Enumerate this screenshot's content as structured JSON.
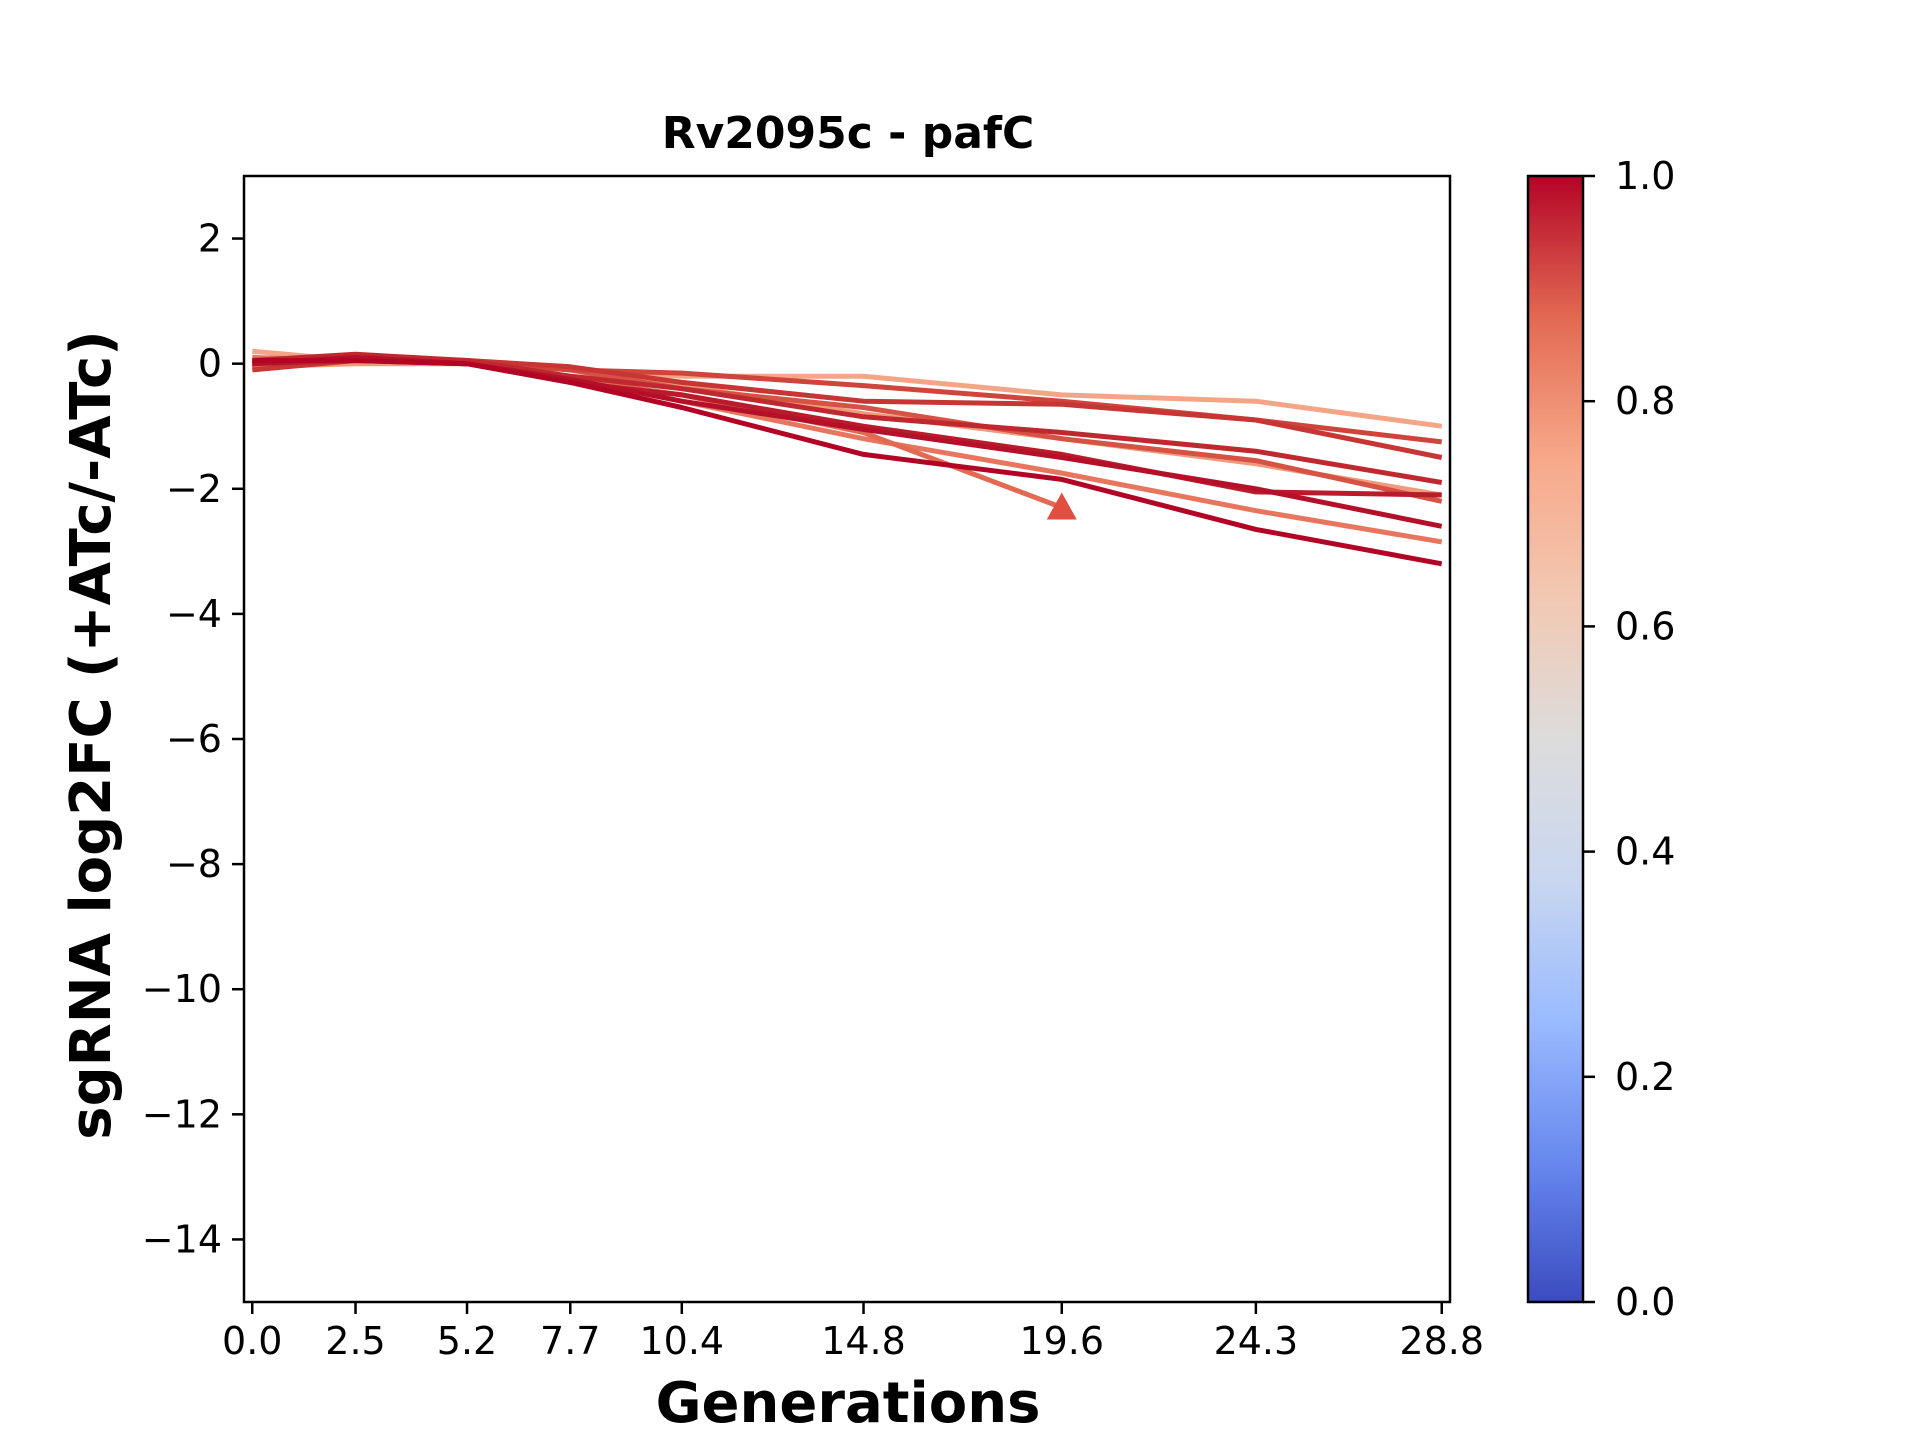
{
  "chart_data": {
    "type": "line",
    "title": "Rv2095c - pafC",
    "xlabel": "Generations",
    "ylabel": "sgRNA log2FC (+ATc/-ATc)",
    "xlim": [
      -0.2,
      29.0
    ],
    "ylim": [
      -15,
      3
    ],
    "x_ticks": [
      0.0,
      2.5,
      5.2,
      7.7,
      10.4,
      14.8,
      19.6,
      24.3,
      28.8
    ],
    "x_tick_labels": [
      "0.0",
      "2.5",
      "5.2",
      "7.7",
      "10.4",
      "14.8",
      "19.6",
      "24.3",
      "28.8"
    ],
    "y_ticks": [
      2,
      0,
      -2,
      -4,
      -6,
      -8,
      -10,
      -12,
      -14
    ],
    "y_tick_labels": [
      "2",
      "0",
      "−2",
      "−4",
      "−6",
      "−8",
      "−10",
      "−12",
      "−14"
    ],
    "grid": false,
    "colorbar": {
      "colormap": "coolwarm",
      "range": [
        0.0,
        1.0
      ],
      "ticks": [
        0.0,
        0.2,
        0.4,
        0.6,
        0.8,
        1.0
      ],
      "tick_labels": [
        "0.0",
        "0.2",
        "0.4",
        "0.6",
        "0.8",
        "1.0"
      ],
      "stops": [
        "#3b4cc0",
        "#6788ee",
        "#9abbff",
        "#c9d7f0",
        "#dddcdc",
        "#f2c8b2",
        "#f7a889",
        "#e26952",
        "#b40426"
      ]
    },
    "series": [
      {
        "value": 0.7,
        "color": "#f4a586",
        "x": [
          0,
          2.5,
          5.2,
          7.7,
          10.4,
          14.8,
          19.6,
          24.3,
          28.8
        ],
        "y": [
          0.2,
          0.05,
          0.0,
          -0.1,
          -0.2,
          -0.2,
          -0.5,
          -0.6,
          -1.0
        ]
      },
      {
        "value": 0.75,
        "color": "#f19a7b",
        "x": [
          0,
          2.5,
          5.2,
          7.7,
          10.4,
          14.8,
          19.6,
          24.3,
          28.8
        ],
        "y": [
          -0.05,
          0.0,
          0.0,
          -0.2,
          -0.35,
          -0.8,
          -1.2,
          -1.6,
          -2.1
        ]
      },
      {
        "value": 0.85,
        "color": "#e8765e",
        "x": [
          0,
          2.5,
          5.2,
          7.7,
          10.4,
          14.8,
          19.6,
          24.3,
          28.8
        ],
        "y": [
          0.1,
          0.05,
          0.0,
          -0.25,
          -0.6,
          -1.2,
          -1.75,
          -2.35,
          -2.85
        ]
      },
      {
        "value": 0.87,
        "color": "#e26952",
        "x": [
          0,
          2.5,
          5.2,
          7.7,
          10.4,
          14.8,
          19.6
        ],
        "y": [
          -0.05,
          0.05,
          0.0,
          -0.25,
          -0.5,
          -1.1,
          -2.3
        ]
      },
      {
        "value": 0.9,
        "color": "#d65244",
        "x": [
          0,
          2.5,
          5.2,
          7.7,
          10.4,
          14.8,
          19.6,
          24.3,
          28.8
        ],
        "y": [
          0.0,
          0.1,
          0.05,
          -0.1,
          -0.4,
          -0.7,
          -1.2,
          -1.55,
          -2.2
        ]
      },
      {
        "value": 0.92,
        "color": "#cf453c",
        "x": [
          0,
          2.5,
          5.2,
          7.7,
          10.4,
          14.8,
          19.6,
          24.3,
          28.8
        ],
        "y": [
          0.05,
          0.1,
          0.05,
          -0.1,
          -0.15,
          -0.35,
          -0.6,
          -0.9,
          -1.25
        ]
      },
      {
        "value": 0.94,
        "color": "#c73635",
        "x": [
          0,
          2.5,
          5.2,
          7.7,
          10.4,
          14.8,
          19.6,
          24.3,
          28.8
        ],
        "y": [
          -0.1,
          0.05,
          0.05,
          -0.05,
          -0.3,
          -0.6,
          -0.65,
          -0.9,
          -1.5
        ]
      },
      {
        "value": 0.96,
        "color": "#c0282f",
        "x": [
          0,
          2.5,
          5.2,
          7.7,
          10.4,
          14.8,
          19.6,
          24.3,
          28.8
        ],
        "y": [
          0.05,
          0.15,
          0.05,
          -0.2,
          -0.4,
          -0.85,
          -1.1,
          -1.4,
          -1.9
        ]
      },
      {
        "value": 0.97,
        "color": "#ba1b2b",
        "x": [
          0,
          2.5,
          5.2,
          7.7,
          10.4,
          14.8,
          19.6,
          24.3,
          28.8
        ],
        "y": [
          0.0,
          0.05,
          0.0,
          -0.3,
          -0.5,
          -1.0,
          -1.45,
          -2.05,
          -2.1
        ]
      },
      {
        "value": 0.98,
        "color": "#b5102a",
        "x": [
          0,
          2.5,
          5.2,
          7.7,
          10.4,
          14.8,
          19.6,
          24.3,
          28.8
        ],
        "y": [
          0.0,
          0.1,
          0.0,
          -0.25,
          -0.6,
          -1.05,
          -1.5,
          -2.0,
          -2.6
        ]
      },
      {
        "value": 1.0,
        "color": "#b40426",
        "x": [
          0,
          2.5,
          5.2,
          7.7,
          10.4,
          14.8,
          19.6,
          24.3,
          28.8
        ],
        "y": [
          0.05,
          0.05,
          0.0,
          -0.3,
          -0.7,
          -1.45,
          -1.85,
          -2.65,
          -3.2
        ]
      }
    ],
    "markers": [
      {
        "shape": "triangle",
        "x": 19.6,
        "y": -2.3,
        "color": "#e04f3f"
      }
    ]
  }
}
